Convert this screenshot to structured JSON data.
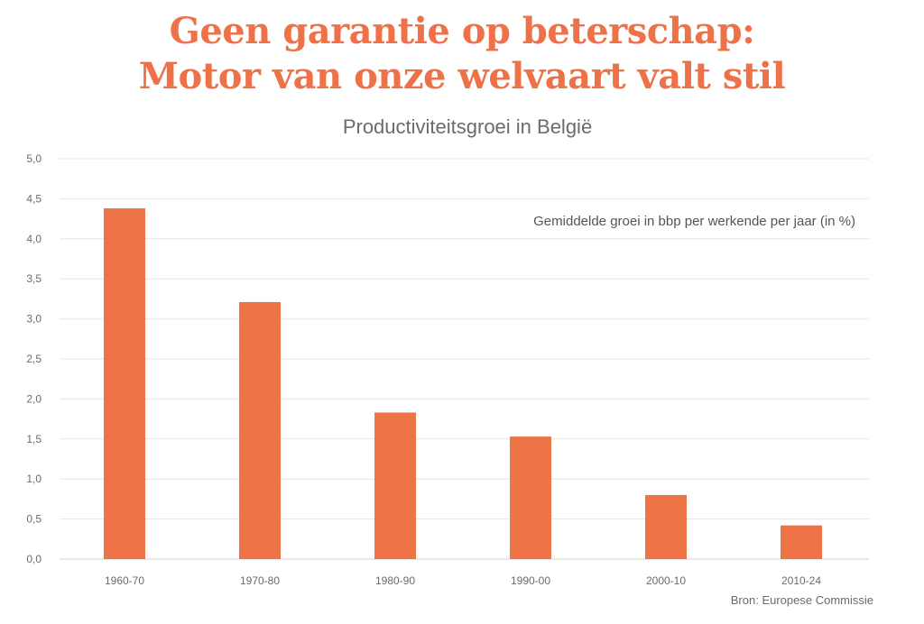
{
  "headline": {
    "line1": "Geen garantie op beterschap:",
    "line2": "Motor van onze welvaart valt stil"
  },
  "source": "Bron: Europese Commissie",
  "colors": {
    "accent": "#ee7148",
    "bar": "#ee7448",
    "grid": "#e6e6e6",
    "text": "#6b6b6b"
  },
  "chart_data": {
    "type": "bar",
    "title": "Productiviteitsgroei in België",
    "annotation": "Gemiddelde groei in bbp per werkende per jaar (in %)",
    "xlabel": "",
    "ylabel": "",
    "categories": [
      "1960-70",
      "1970-80",
      "1980-90",
      "1990-00",
      "2000-10",
      "2010-24"
    ],
    "values": [
      4.38,
      3.21,
      1.83,
      1.53,
      0.8,
      0.42
    ],
    "ylim": [
      0,
      5
    ],
    "yticks": [
      "0,0",
      "0,5",
      "1,0",
      "1,5",
      "2,0",
      "2,5",
      "3,0",
      "3,5",
      "4,0",
      "4,5",
      "5,0"
    ],
    "grid": true,
    "legend": "none"
  }
}
